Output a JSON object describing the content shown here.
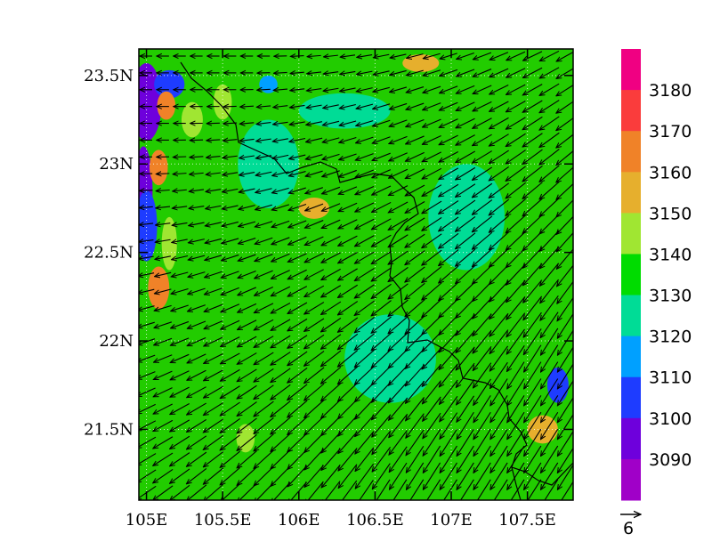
{
  "map": {
    "lon_range": [
      104.95,
      107.8
    ],
    "lat_range": [
      21.1,
      23.65
    ],
    "x_ticks": [
      {
        "value": 105.0,
        "label": "105E"
      },
      {
        "value": 105.5,
        "label": "105.5E"
      },
      {
        "value": 106.0,
        "label": "106E"
      },
      {
        "value": 106.5,
        "label": "106.5E"
      },
      {
        "value": 107.0,
        "label": "107E"
      },
      {
        "value": 107.5,
        "label": "107.5E"
      }
    ],
    "y_ticks": [
      {
        "value": 23.5,
        "label": "23.5N"
      },
      {
        "value": 23.0,
        "label": "23N"
      },
      {
        "value": 22.5,
        "label": "22.5N"
      },
      {
        "value": 22.0,
        "label": "22N"
      },
      {
        "value": 21.5,
        "label": "21.5N"
      }
    ],
    "grid": "dotted",
    "background_color": "#22cc00",
    "patches": [
      {
        "lon": 105.0,
        "lat": 23.35,
        "rx": 0.1,
        "ry": 0.22,
        "level": 3090
      },
      {
        "lon": 104.98,
        "lat": 22.85,
        "rx": 0.06,
        "ry": 0.25,
        "level": 3090
      },
      {
        "lon": 105.0,
        "lat": 22.65,
        "rx": 0.07,
        "ry": 0.2,
        "level": 3105
      },
      {
        "lon": 105.15,
        "lat": 23.45,
        "rx": 0.1,
        "ry": 0.08,
        "level": 3105
      },
      {
        "lon": 105.13,
        "lat": 23.33,
        "rx": 0.06,
        "ry": 0.08,
        "level": 3160
      },
      {
        "lon": 105.08,
        "lat": 22.98,
        "rx": 0.06,
        "ry": 0.1,
        "level": 3165
      },
      {
        "lon": 105.08,
        "lat": 22.3,
        "rx": 0.07,
        "ry": 0.12,
        "level": 3160
      },
      {
        "lon": 105.15,
        "lat": 22.55,
        "rx": 0.05,
        "ry": 0.15,
        "level": 3145
      },
      {
        "lon": 105.3,
        "lat": 23.25,
        "rx": 0.07,
        "ry": 0.1,
        "level": 3145
      },
      {
        "lon": 105.5,
        "lat": 23.35,
        "rx": 0.06,
        "ry": 0.1,
        "level": 3145
      },
      {
        "lon": 106.1,
        "lat": 22.75,
        "rx": 0.1,
        "ry": 0.06,
        "level": 3150
      },
      {
        "lon": 106.8,
        "lat": 23.57,
        "rx": 0.12,
        "ry": 0.05,
        "level": 3155
      },
      {
        "lon": 105.8,
        "lat": 23.45,
        "rx": 0.06,
        "ry": 0.05,
        "level": 3115
      },
      {
        "lon": 107.6,
        "lat": 21.5,
        "rx": 0.1,
        "ry": 0.08,
        "level": 3155
      },
      {
        "lon": 107.7,
        "lat": 21.75,
        "rx": 0.07,
        "ry": 0.1,
        "level": 3105
      },
      {
        "lon": 105.65,
        "lat": 21.45,
        "rx": 0.06,
        "ry": 0.08,
        "level": 3145
      },
      {
        "lon": 106.6,
        "lat": 21.9,
        "rx": 0.3,
        "ry": 0.25,
        "level": 3125
      },
      {
        "lon": 107.1,
        "lat": 22.7,
        "rx": 0.25,
        "ry": 0.3,
        "level": 3125
      },
      {
        "lon": 105.8,
        "lat": 23.0,
        "rx": 0.2,
        "ry": 0.25,
        "level": 3125
      },
      {
        "lon": 106.3,
        "lat": 23.3,
        "rx": 0.3,
        "ry": 0.1,
        "level": 3125
      }
    ]
  },
  "colorbar": {
    "levels": [
      3090,
      3100,
      3110,
      3120,
      3130,
      3140,
      3150,
      3160,
      3170,
      3180
    ],
    "colors": [
      "#a000c8",
      "#6e00dc",
      "#1e3cff",
      "#00a0ff",
      "#00dc96",
      "#00dc00",
      "#a0e632",
      "#e6af2d",
      "#f08228",
      "#fa3c3c",
      "#f00082"
    ]
  },
  "vector_reference": {
    "label": "6"
  }
}
